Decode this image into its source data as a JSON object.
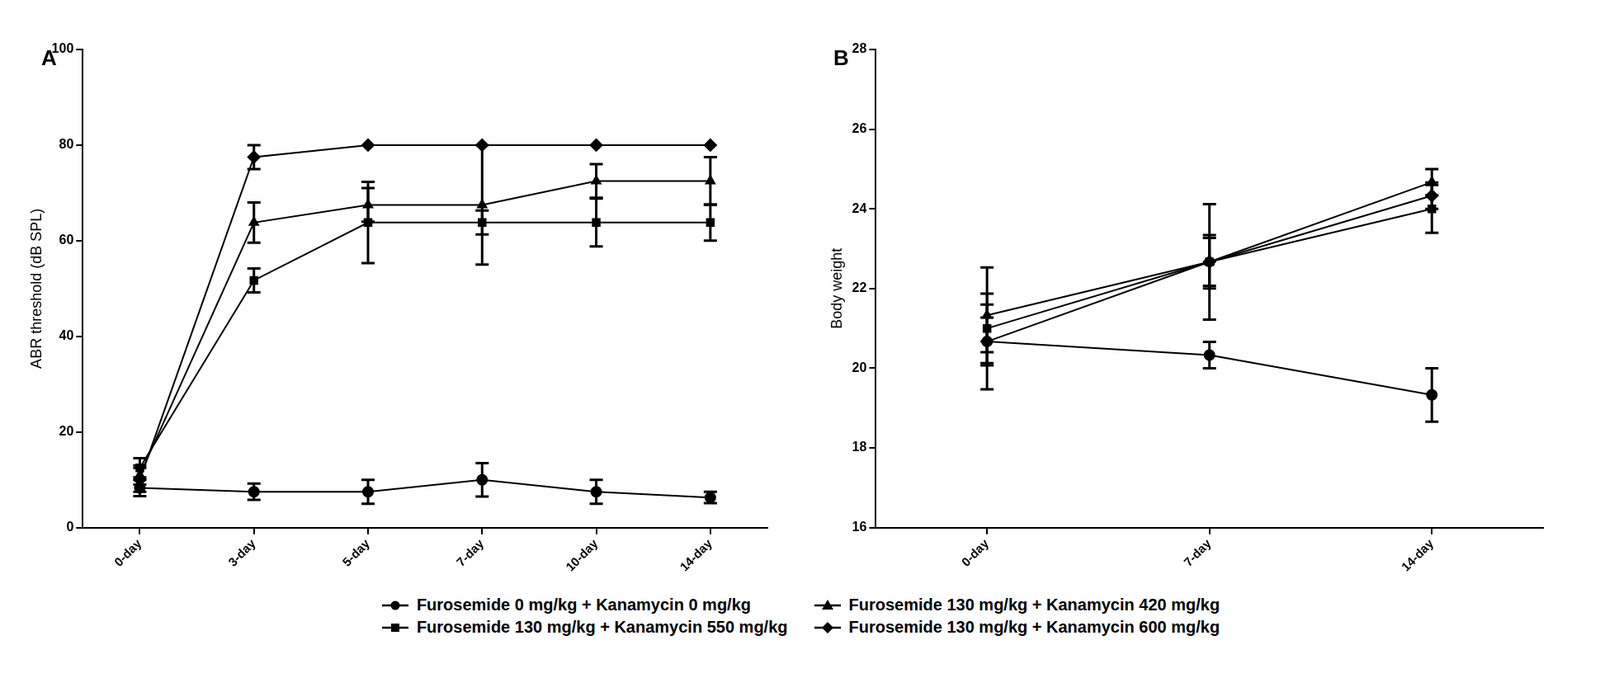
{
  "chart_data": [
    {
      "type": "line",
      "title": "A",
      "y_label": "ABR threshold (dB SPL)",
      "categories": [
        "0-day",
        "3-day",
        "5-day",
        "7-day",
        "10-day",
        "14-day"
      ],
      "ylim": [
        0,
        100
      ],
      "yticks": [
        0,
        20,
        40,
        60,
        80,
        100
      ],
      "grid": false,
      "legend": "bottom",
      "series": [
        {
          "name": "Furosemide 0 mg/kg + Kanamycin 0 mg/kg",
          "color": "#000000",
          "marker": "circle",
          "values": [
            8.3,
            7.5,
            7.5,
            10,
            7.5,
            6.3
          ],
          "errors": [
            1.7,
            1.7,
            2.5,
            3.5,
            2.5,
            1.2
          ]
        },
        {
          "name": "Furosemide 130 mg/kg + Kanamycin 420 mg/kg",
          "color": "#000000",
          "marker": "triangle",
          "values": [
            11,
            63.8,
            67.5,
            67.5,
            72.5,
            72.5
          ],
          "errors": [
            2,
            4.2,
            3.5,
            12.5,
            3.5,
            5
          ]
        },
        {
          "name": "Furosemide 130 mg/kg + Kanamycin 550 mg/kg",
          "color": "#000000",
          "marker": "square",
          "values": [
            12.5,
            51.7,
            63.8,
            63.8,
            63.8,
            63.8
          ],
          "errors": [
            2,
            2.5,
            8.5,
            2.5,
            5,
            3.8
          ]
        },
        {
          "name": "Furosemide 130 mg/kg + Kanamycin 600 mg/kg",
          "color": "#000000",
          "marker": "diamond",
          "values": [
            10,
            77.5,
            80,
            80,
            80,
            80
          ],
          "errors": [
            2.5,
            2.5,
            0,
            0,
            0,
            0
          ]
        }
      ]
    },
    {
      "type": "line",
      "title": "B",
      "y_label": "Body weight",
      "categories": [
        "0-day",
        "7-day",
        "14-day"
      ],
      "ylim": [
        16,
        28
      ],
      "yticks": [
        16,
        18,
        20,
        22,
        24,
        26,
        28
      ],
      "grid": false,
      "series": [
        {
          "name": "Furosemide 0 mg/kg + Kanamycin 0 mg/kg",
          "color": "#000000",
          "marker": "circle",
          "values": [
            20.67,
            20.33,
            19.33
          ],
          "errors": [
            1.2,
            0.33,
            0.67
          ]
        },
        {
          "name": "Furosemide 130 mg/kg + Kanamycin 420 mg/kg",
          "color": "#000000",
          "marker": "triangle",
          "values": [
            21.33,
            22.67,
            24.67
          ],
          "errors": [
            1.2,
            1.45,
            0.33
          ]
        },
        {
          "name": "Furosemide 130 mg/kg + Kanamycin 550 mg/kg",
          "color": "#000000",
          "marker": "square",
          "values": [
            21.0,
            22.67,
            24.0
          ],
          "errors": [
            0.6,
            0.6,
            0.6
          ]
        },
        {
          "name": "Furosemide 130 mg/kg + Kanamycin 600 mg/kg",
          "color": "#000000",
          "marker": "diamond",
          "values": [
            20.67,
            22.67,
            24.33
          ],
          "errors": [
            0.6,
            0.67,
            0.33
          ]
        }
      ]
    }
  ]
}
